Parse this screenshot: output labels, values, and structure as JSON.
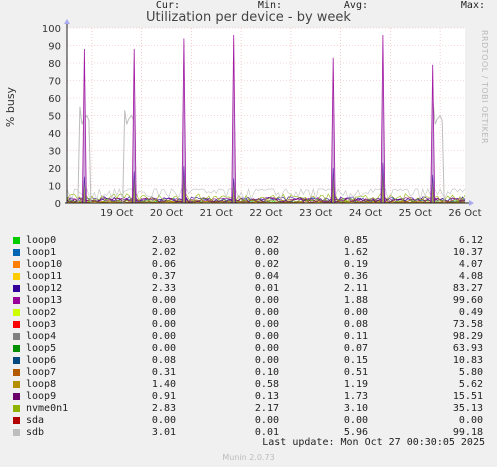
{
  "chart_data": {
    "type": "line",
    "title": "Utilization per device - by week",
    "ylabel": "% busy",
    "ylim": [
      0,
      100
    ],
    "yticks": [
      0,
      10,
      20,
      30,
      40,
      50,
      60,
      70,
      80,
      90,
      100
    ],
    "xticks": [
      "19 Oct",
      "20 Oct",
      "21 Oct",
      "22 Oct",
      "23 Oct",
      "24 Oct",
      "25 Oct",
      "26 Oct"
    ],
    "side_label": "RRDTOOL / TOBI OETIKER",
    "legend_headers": {
      "cur": "Cur:",
      "min": "Min:",
      "avg": "Avg:",
      "max": "Max:"
    },
    "series": [
      {
        "name": "loop0",
        "color": "#00cc00",
        "cur": "2.03",
        "min": "0.02",
        "avg": "0.85",
        "max": "6.12"
      },
      {
        "name": "loop1",
        "color": "#0066b3",
        "cur": "2.02",
        "min": "0.00",
        "avg": "1.62",
        "max": "10.37"
      },
      {
        "name": "loop10",
        "color": "#ff8000",
        "cur": "0.06",
        "min": "0.02",
        "avg": "0.19",
        "max": "4.07"
      },
      {
        "name": "loop11",
        "color": "#ffcc00",
        "cur": "0.37",
        "min": "0.04",
        "avg": "0.36",
        "max": "4.08"
      },
      {
        "name": "loop12",
        "color": "#330099",
        "cur": "2.33",
        "min": "0.01",
        "avg": "2.11",
        "max": "83.27"
      },
      {
        "name": "loop13",
        "color": "#990099",
        "cur": "0.00",
        "min": "0.00",
        "avg": "1.88",
        "max": "99.60"
      },
      {
        "name": "loop2",
        "color": "#ccff00",
        "cur": "0.00",
        "min": "0.00",
        "avg": "0.00",
        "max": "0.49"
      },
      {
        "name": "loop3",
        "color": "#ff0000",
        "cur": "0.00",
        "min": "0.00",
        "avg": "0.08",
        "max": "73.58"
      },
      {
        "name": "loop4",
        "color": "#808080",
        "cur": "0.00",
        "min": "0.00",
        "avg": "0.11",
        "max": "98.29"
      },
      {
        "name": "loop5",
        "color": "#008f00",
        "cur": "0.00",
        "min": "0.00",
        "avg": "0.07",
        "max": "63.93"
      },
      {
        "name": "loop6",
        "color": "#00487d",
        "cur": "0.08",
        "min": "0.00",
        "avg": "0.15",
        "max": "10.83"
      },
      {
        "name": "loop7",
        "color": "#b35a00",
        "cur": "0.31",
        "min": "0.10",
        "avg": "0.51",
        "max": "5.80"
      },
      {
        "name": "loop8",
        "color": "#b38f00",
        "cur": "1.40",
        "min": "0.58",
        "avg": "1.19",
        "max": "5.62"
      },
      {
        "name": "loop9",
        "color": "#6b006b",
        "cur": "0.91",
        "min": "0.13",
        "avg": "1.73",
        "max": "15.51"
      },
      {
        "name": "nvme0n1",
        "color": "#8fb300",
        "cur": "2.83",
        "min": "2.17",
        "avg": "3.10",
        "max": "35.13"
      },
      {
        "name": "sda",
        "color": "#b30000",
        "cur": "0.00",
        "min": "0.00",
        "avg": "0.00",
        "max": "0.00"
      },
      {
        "name": "sdb",
        "color": "#bebebe",
        "cur": "3.01",
        "min": "0.01",
        "avg": "5.96",
        "max": "99.18"
      }
    ],
    "spikes_loop13": [
      {
        "day": 0.35,
        "value": 88
      },
      {
        "day": 1.35,
        "value": 88
      },
      {
        "day": 2.35,
        "value": 94
      },
      {
        "day": 3.35,
        "value": 96
      },
      {
        "day": 5.35,
        "value": 83
      },
      {
        "day": 6.35,
        "value": 96
      },
      {
        "day": 7.35,
        "value": 79
      }
    ],
    "spikes_sdb": [
      {
        "day": 0.3,
        "value": 55
      },
      {
        "day": 1.2,
        "value": 53
      },
      {
        "day": 7.4,
        "value": 57
      }
    ]
  },
  "last_update": "Last update:  Mon Oct 27 00:30:05 2025",
  "version": "Munin 2.0.73"
}
